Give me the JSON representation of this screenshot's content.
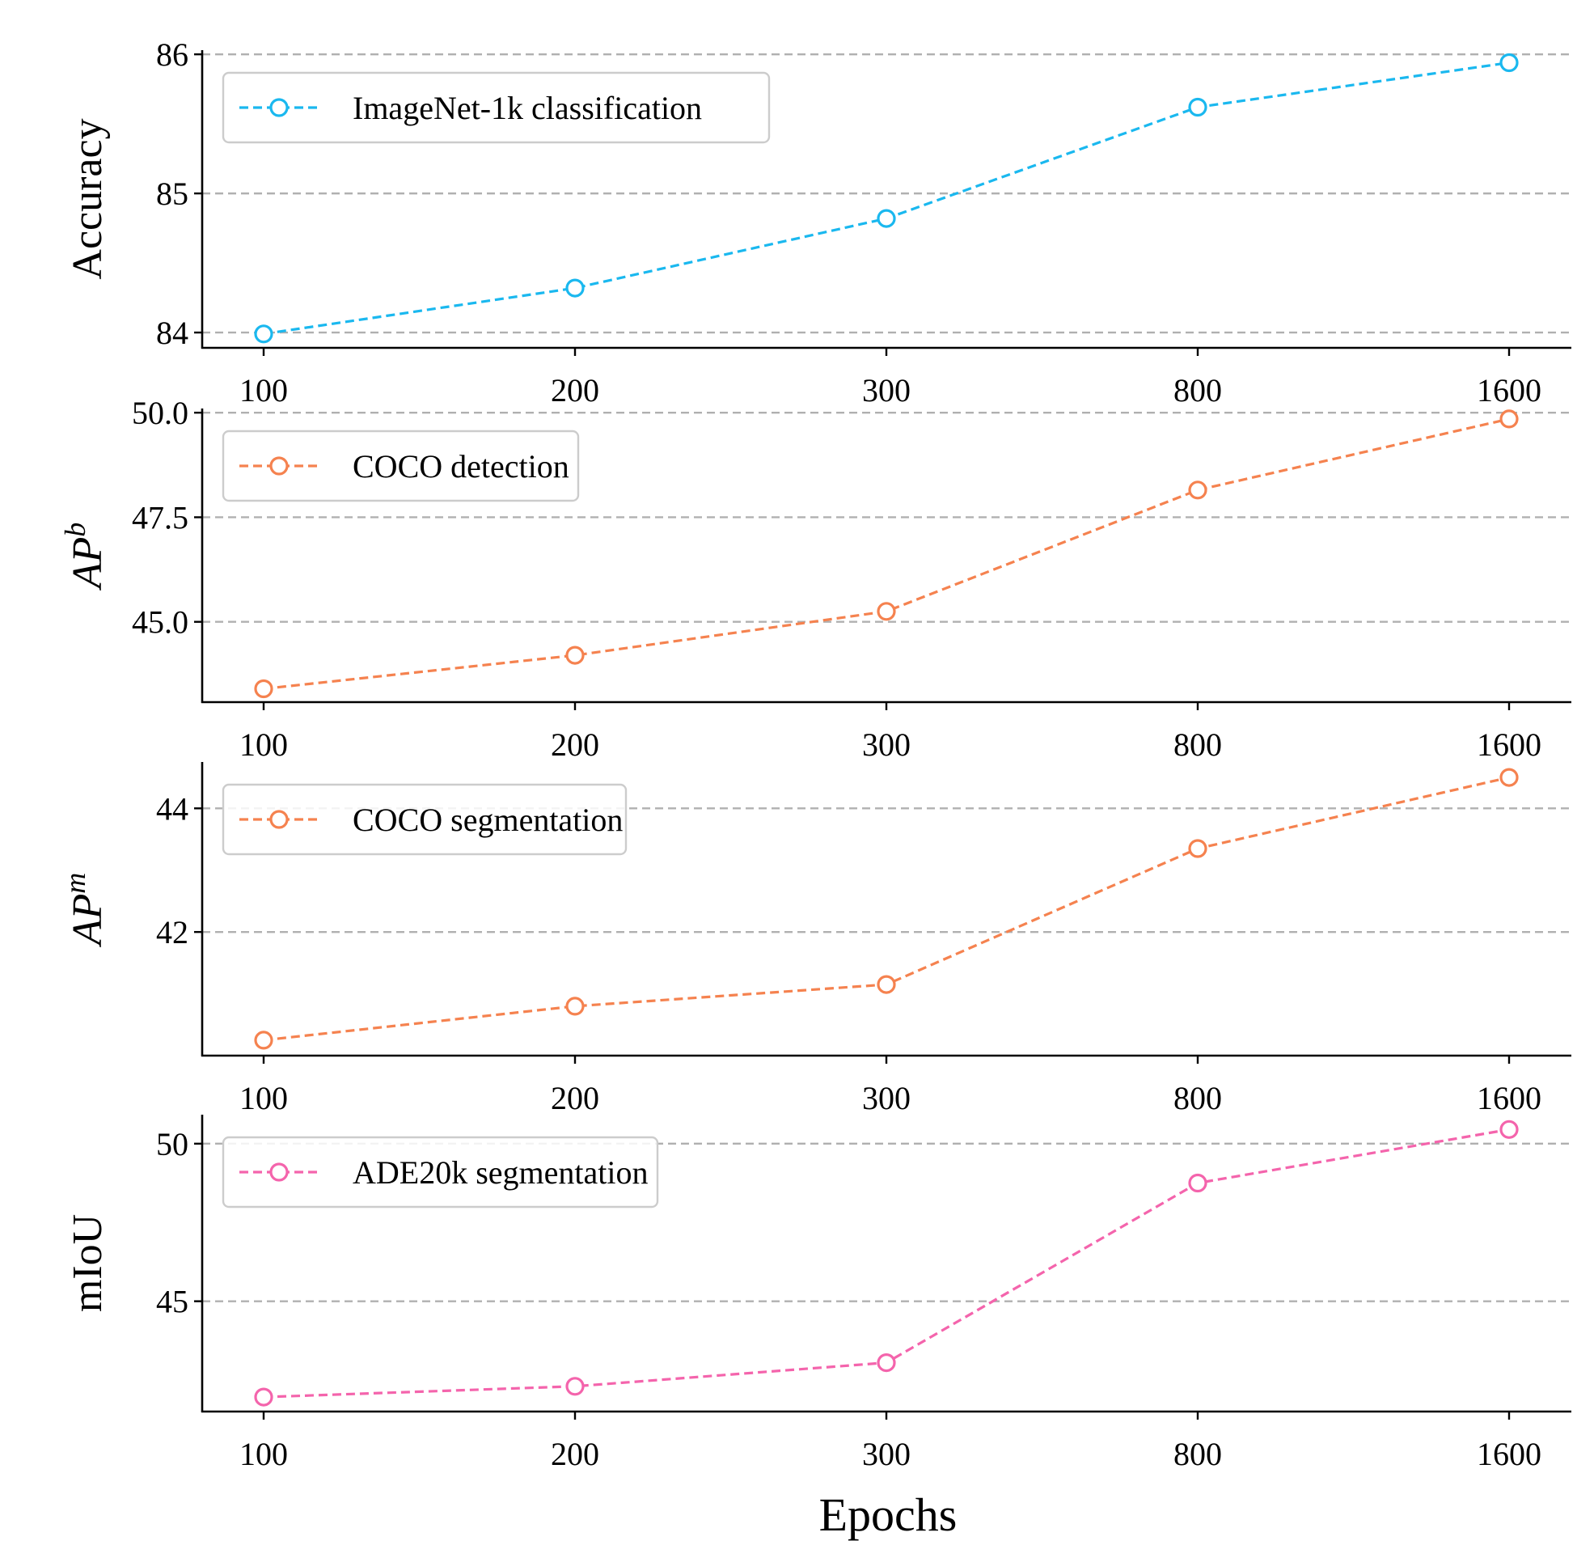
{
  "chart_data": [
    {
      "type": "line",
      "categories": [
        "100",
        "200",
        "300",
        "800",
        "1600"
      ],
      "series": [
        {
          "name": "ImageNet-1k classification",
          "values": [
            83.99,
            84.32,
            84.82,
            85.62,
            85.94
          ],
          "color": "#1ab8ef"
        }
      ],
      "ylabel": "Accuracy",
      "ylabel_base": "",
      "ylabel_sup": "",
      "ylim": [
        83.89,
        86.03
      ],
      "yticks": [
        84,
        85,
        86
      ],
      "ytick_labels": [
        "84",
        "85",
        "86"
      ],
      "grid": true,
      "legend_position": "upper-left"
    },
    {
      "type": "line",
      "categories": [
        "100",
        "200",
        "300",
        "800",
        "1600"
      ],
      "series": [
        {
          "name": "COCO detection",
          "values": [
            43.4,
            44.2,
            45.25,
            48.15,
            49.85
          ],
          "color": "#f5824f"
        }
      ],
      "ylabel": "",
      "ylabel_base": "AP",
      "ylabel_sup": "b",
      "ylim": [
        43.08,
        50.1
      ],
      "yticks": [
        45.0,
        47.5,
        50.0
      ],
      "ytick_labels": [
        "45.0",
        "47.5",
        "50.0"
      ],
      "grid": true,
      "legend_position": "upper-left"
    },
    {
      "type": "line",
      "categories": [
        "100",
        "200",
        "300",
        "800",
        "1600"
      ],
      "series": [
        {
          "name": "COCO segmentation",
          "values": [
            40.25,
            40.8,
            41.15,
            43.35,
            44.5
          ],
          "color": "#f5824f"
        }
      ],
      "ylabel": "",
      "ylabel_base": "AP",
      "ylabel_sup": "m",
      "ylim": [
        40.0,
        44.75
      ],
      "yticks": [
        42,
        44
      ],
      "ytick_labels": [
        "42",
        "44"
      ],
      "grid": true,
      "legend_position": "upper-left"
    },
    {
      "type": "line",
      "categories": [
        "100",
        "200",
        "300",
        "800",
        "1600"
      ],
      "series": [
        {
          "name": "ADE20k segmentation",
          "values": [
            41.96,
            42.3,
            43.05,
            48.75,
            50.45
          ],
          "color": "#f464ac"
        }
      ],
      "ylabel": "mIoU",
      "ylabel_base": "",
      "ylabel_sup": "",
      "ylim": [
        41.5,
        50.92
      ],
      "yticks": [
        45,
        50
      ],
      "ytick_labels": [
        "45",
        "50"
      ],
      "grid": true,
      "legend_position": "upper-left"
    }
  ],
  "xlabel": "Epochs"
}
